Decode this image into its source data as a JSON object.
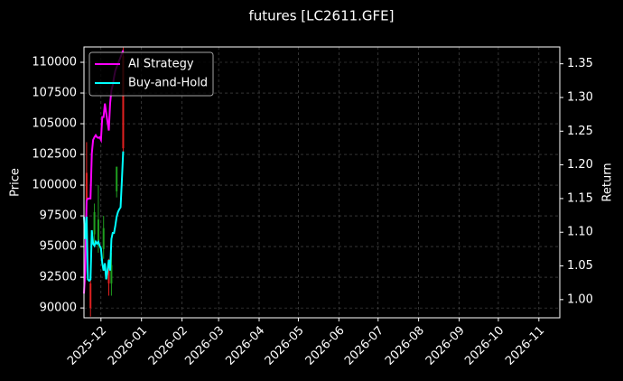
{
  "chart_data": {
    "type": "line",
    "title": "futures [LC2611.GFE]",
    "ylabel": "Price",
    "y2label": "Return",
    "x": [
      "2025-11-18",
      "2025-11-19",
      "2025-11-20",
      "2025-11-21",
      "2025-11-22",
      "2025-11-23",
      "2025-11-24",
      "2025-11-25",
      "2025-11-26",
      "2025-11-27",
      "2025-11-28",
      "2025-11-29",
      "2025-11-30",
      "2025-12-01",
      "2025-12-02",
      "2025-12-03",
      "2025-12-04",
      "2025-12-05",
      "2025-12-06",
      "2025-12-07",
      "2025-12-08",
      "2025-12-09",
      "2025-12-10",
      "2025-12-11",
      "2025-12-12",
      "2025-12-13",
      "2025-12-14",
      "2025-12-15",
      "2025-12-16",
      "2025-12-17",
      "2025-12-18"
    ],
    "series": [
      {
        "name": "AI Strategy",
        "color": "#ff00ff",
        "axis": "y2",
        "values": [
          1.009,
          1.043,
          1.147,
          1.15,
          1.15,
          1.15,
          1.217,
          1.237,
          1.241,
          1.244,
          1.241,
          1.24,
          1.241,
          1.237,
          1.271,
          1.271,
          1.291,
          1.277,
          1.264,
          1.251,
          1.291,
          1.311,
          1.318,
          1.33,
          1.34,
          1.345,
          1.35,
          1.355,
          1.36,
          1.365,
          1.37
        ]
      },
      {
        "name": "Buy-and-Hold",
        "color": "#00ffff",
        "axis": "y2",
        "values": [
          1.123,
          1.09,
          1.123,
          1.03,
          1.028,
          1.03,
          1.103,
          1.083,
          1.08,
          1.086,
          1.083,
          1.086,
          1.08,
          1.076,
          1.054,
          1.043,
          1.054,
          1.03,
          1.043,
          1.059,
          1.043,
          1.09,
          1.099,
          1.099,
          1.11,
          1.123,
          1.13,
          1.134,
          1.137,
          1.177,
          1.22
        ]
      }
    ],
    "candles": {
      "x": [
        "2025-11-20",
        "2025-11-23",
        "2025-11-26",
        "2025-11-29",
        "2025-12-03",
        "2025-12-07",
        "2025-12-09",
        "2025-12-13",
        "2025-12-18"
      ],
      "open": [
        101000,
        92000,
        96000,
        95500,
        94800,
        93200,
        92000,
        99500,
        110500
      ],
      "close": [
        98800,
        90000,
        97800,
        97200,
        96500,
        92000,
        93500,
        101500,
        103000
      ],
      "high": [
        103500,
        93500,
        98500,
        100000,
        97500,
        94000,
        94500,
        101500,
        111200
      ],
      "low": [
        97000,
        89300,
        95000,
        94500,
        94000,
        91000,
        91000,
        99000,
        102500
      ],
      "up_color": "#1f9e1f",
      "down_color": "#e02020"
    },
    "xlim": [
      "2025-11-18",
      "2026-11-17"
    ],
    "xticks": [
      {
        "value": "2025-12-01",
        "label": "2025-12"
      },
      {
        "value": "2026-01-01",
        "label": "2026-01"
      },
      {
        "value": "2026-02-01",
        "label": "2026-02"
      },
      {
        "value": "2026-03-01",
        "label": "2026-03"
      },
      {
        "value": "2026-04-01",
        "label": "2026-04"
      },
      {
        "value": "2026-05-01",
        "label": "2026-05"
      },
      {
        "value": "2026-06-01",
        "label": "2026-06"
      },
      {
        "value": "2026-07-01",
        "label": "2026-07"
      },
      {
        "value": "2026-08-01",
        "label": "2026-08"
      },
      {
        "value": "2026-09-01",
        "label": "2026-09"
      },
      {
        "value": "2026-10-01",
        "label": "2026-10"
      },
      {
        "value": "2026-11-01",
        "label": "2026-11"
      }
    ],
    "ylim": [
      89200,
      111250
    ],
    "yticks": [
      90000,
      92500,
      95000,
      97500,
      100000,
      102500,
      105000,
      107500,
      110000
    ],
    "y2lim": [
      0.973,
      1.375
    ],
    "y2ticks": [
      {
        "value": 1,
        "label": "1.00"
      },
      1.05,
      {
        "value": 1.1,
        "label": "1.10"
      },
      1.15,
      {
        "value": 1.2,
        "label": "1.20"
      },
      1.25,
      {
        "value": 1.3,
        "label": "1.30"
      },
      1.35
    ],
    "grid": true,
    "legend": "upper left"
  }
}
